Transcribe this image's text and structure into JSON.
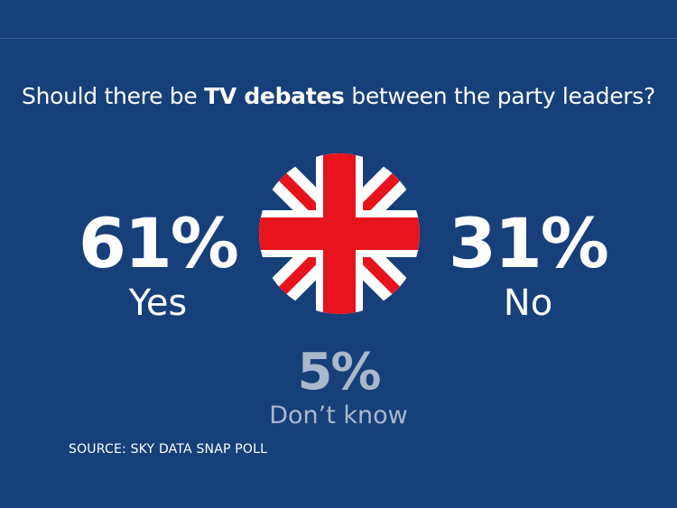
{
  "question": {
    "before": "Should there be ",
    "bold": "TV debates",
    "after": " between the party leaders?"
  },
  "chart_data": {
    "type": "table",
    "title": "Should there be TV debates between the party leaders?",
    "categories": [
      "Yes",
      "No",
      "Don’t know"
    ],
    "values": [
      61,
      31,
      5
    ],
    "unit": "%",
    "labels": {
      "yes_pct": "61%",
      "no_pct": "31%",
      "dk_pct": "5%"
    }
  },
  "flag_icon": "union-jack-icon",
  "colors": {
    "background": "#173f7a",
    "muted_text": "#aab8cc",
    "flag_red": "#e8141d",
    "flag_blue": "#173f7a",
    "flag_white": "#ffffff"
  },
  "source": "SOURCE: SKY DATA SNAP POLL"
}
